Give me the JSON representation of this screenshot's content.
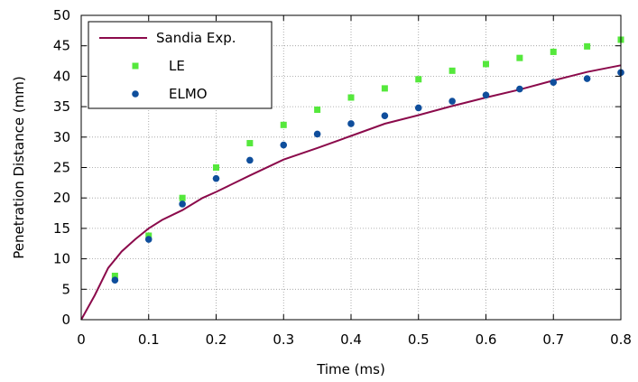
{
  "chart_data": {
    "type": "line",
    "xlabel": "Time (ms)",
    "ylabel": "Penetration Distance (mm)",
    "xlim": [
      0,
      0.8
    ],
    "ylim": [
      0,
      50
    ],
    "x_ticks": [
      "0",
      "0.1",
      "0.2",
      "0.3",
      "0.4",
      "0.5",
      "0.6",
      "0.7",
      "0.8"
    ],
    "y_ticks": [
      "0",
      "5",
      "10",
      "15",
      "20",
      "25",
      "30",
      "35",
      "40",
      "45",
      "50"
    ],
    "grid": true,
    "legend_position": "top-left",
    "series": [
      {
        "name": "Sandia Exp.",
        "style": "line",
        "color": "#8b0a4b",
        "x": [
          0,
          0.02,
          0.04,
          0.06,
          0.08,
          0.1,
          0.12,
          0.15,
          0.18,
          0.2,
          0.25,
          0.3,
          0.35,
          0.4,
          0.45,
          0.5,
          0.55,
          0.6,
          0.65,
          0.7,
          0.75,
          0.8
        ],
        "y": [
          0,
          4,
          8.5,
          11.2,
          13.2,
          15.0,
          16.4,
          18.0,
          20.0,
          21.0,
          23.7,
          26.3,
          28.2,
          30.2,
          32.2,
          33.6,
          35.1,
          36.5,
          37.8,
          39.3,
          40.7,
          41.8
        ]
      },
      {
        "name": "LE",
        "style": "square",
        "color": "#55e83c",
        "x": [
          0.05,
          0.1,
          0.15,
          0.2,
          0.25,
          0.3,
          0.35,
          0.4,
          0.45,
          0.5,
          0.55,
          0.6,
          0.65,
          0.7,
          0.75,
          0.8
        ],
        "y": [
          7.2,
          13.8,
          20.0,
          25.0,
          29.0,
          32.0,
          34.5,
          36.5,
          38.0,
          39.5,
          40.9,
          42.0,
          43.0,
          44.0,
          44.9,
          46.0
        ]
      },
      {
        "name": "ELMO",
        "style": "circle",
        "color": "#0f4e9c",
        "x": [
          0.05,
          0.1,
          0.15,
          0.2,
          0.25,
          0.3,
          0.35,
          0.4,
          0.45,
          0.5,
          0.55,
          0.6,
          0.65,
          0.7,
          0.75,
          0.8
        ],
        "y": [
          6.5,
          13.2,
          19.0,
          23.2,
          26.2,
          28.7,
          30.5,
          32.2,
          33.5,
          34.8,
          35.9,
          36.9,
          37.9,
          39.0,
          39.6,
          40.6
        ]
      }
    ]
  }
}
